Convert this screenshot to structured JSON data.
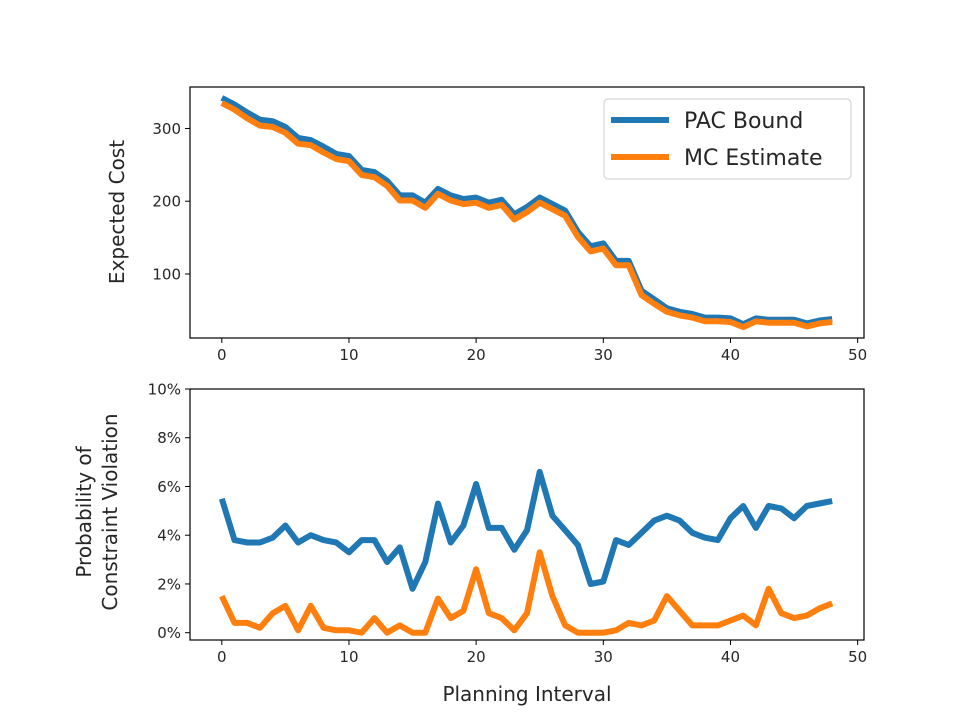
{
  "colors": {
    "pac": "#1f77b4",
    "mc": "#ff7f0e"
  },
  "chart_data": [
    {
      "type": "line",
      "ylabel": "Expected Cost",
      "xlabel": "",
      "xlim": [
        -2.5,
        50.5
      ],
      "ylim": [
        12,
        357
      ],
      "xticks": [
        0,
        10,
        20,
        30,
        40,
        50
      ],
      "xtick_labels": [
        "0",
        "10",
        "20",
        "30",
        "40",
        "50"
      ],
      "yticks": [
        100,
        200,
        300
      ],
      "ytick_labels": [
        "100",
        "200",
        "300"
      ],
      "legend": {
        "position": "top-right",
        "entries": [
          "PAC Bound",
          "MC Estimate"
        ]
      },
      "x": [
        0,
        1,
        2,
        3,
        4,
        5,
        6,
        7,
        8,
        9,
        10,
        11,
        12,
        13,
        14,
        15,
        16,
        17,
        18,
        19,
        20,
        21,
        22,
        23,
        24,
        25,
        26,
        27,
        28,
        29,
        30,
        31,
        32,
        33,
        34,
        35,
        36,
        37,
        38,
        39,
        40,
        41,
        42,
        43,
        44,
        45,
        46,
        47,
        48
      ],
      "series": [
        {
          "name": "PAC Bound",
          "values": [
            342,
            333,
            322,
            312,
            310,
            302,
            287,
            284,
            275,
            265,
            262,
            243,
            240,
            228,
            208,
            208,
            198,
            217,
            208,
            203,
            205,
            198,
            202,
            182,
            192,
            205,
            196,
            187,
            158,
            138,
            142,
            118,
            118,
            77,
            65,
            53,
            48,
            45,
            40,
            40,
            39,
            31,
            39,
            37,
            37,
            37,
            32,
            36,
            38
          ]
        },
        {
          "name": "MC Estimate",
          "values": [
            335,
            326,
            314,
            304,
            302,
            294,
            279,
            277,
            267,
            258,
            255,
            236,
            233,
            221,
            201,
            201,
            191,
            210,
            201,
            196,
            198,
            191,
            195,
            175,
            185,
            198,
            189,
            180,
            151,
            131,
            135,
            112,
            112,
            71,
            59,
            48,
            43,
            40,
            35,
            35,
            34,
            27,
            35,
            33,
            33,
            33,
            28,
            32,
            34
          ]
        }
      ]
    },
    {
      "type": "line",
      "ylabel": "Probability of Constraint Violation",
      "ylabel_lines": [
        "Probability of",
        "Constraint Violation"
      ],
      "xlabel": "Planning Interval",
      "xlim": [
        -2.5,
        50.5
      ],
      "ylim": [
        -0.3,
        10
      ],
      "xticks": [
        0,
        10,
        20,
        30,
        40,
        50
      ],
      "xtick_labels": [
        "0",
        "10",
        "20",
        "30",
        "40",
        "50"
      ],
      "yticks": [
        0,
        2,
        4,
        6,
        8,
        10
      ],
      "ytick_labels": [
        "0%",
        "2%",
        "4%",
        "6%",
        "8%",
        "10%"
      ],
      "x": [
        0,
        1,
        2,
        3,
        4,
        5,
        6,
        7,
        8,
        9,
        10,
        11,
        12,
        13,
        14,
        15,
        16,
        17,
        18,
        19,
        20,
        21,
        22,
        23,
        24,
        25,
        26,
        27,
        28,
        29,
        30,
        31,
        32,
        33,
        34,
        35,
        36,
        37,
        38,
        39,
        40,
        41,
        42,
        43,
        44,
        45,
        46,
        47,
        48
      ],
      "series": [
        {
          "name": "PAC Bound",
          "values": [
            5.5,
            3.8,
            3.7,
            3.7,
            3.9,
            4.4,
            3.7,
            4.0,
            3.8,
            3.7,
            3.3,
            3.8,
            3.8,
            2.9,
            3.5,
            1.8,
            2.9,
            5.3,
            3.7,
            4.4,
            6.1,
            4.3,
            4.3,
            3.4,
            4.2,
            6.6,
            4.8,
            4.2,
            3.6,
            2.0,
            2.1,
            3.8,
            3.6,
            4.1,
            4.6,
            4.8,
            4.6,
            4.1,
            3.9,
            3.8,
            4.7,
            5.2,
            4.3,
            5.2,
            5.1,
            4.7,
            5.2,
            5.3,
            5.4
          ]
        },
        {
          "name": "MC Estimate",
          "values": [
            1.5,
            0.4,
            0.4,
            0.2,
            0.8,
            1.1,
            0.1,
            1.1,
            0.2,
            0.1,
            0.1,
            0.0,
            0.6,
            0.0,
            0.3,
            0.0,
            0.0,
            1.4,
            0.6,
            0.9,
            2.6,
            0.8,
            0.6,
            0.1,
            0.8,
            3.3,
            1.5,
            0.3,
            0.0,
            0.0,
            0.0,
            0.1,
            0.4,
            0.3,
            0.5,
            1.5,
            0.9,
            0.3,
            0.3,
            0.3,
            0.5,
            0.7,
            0.3,
            1.8,
            0.8,
            0.6,
            0.7,
            1.0,
            1.2
          ]
        }
      ]
    }
  ]
}
